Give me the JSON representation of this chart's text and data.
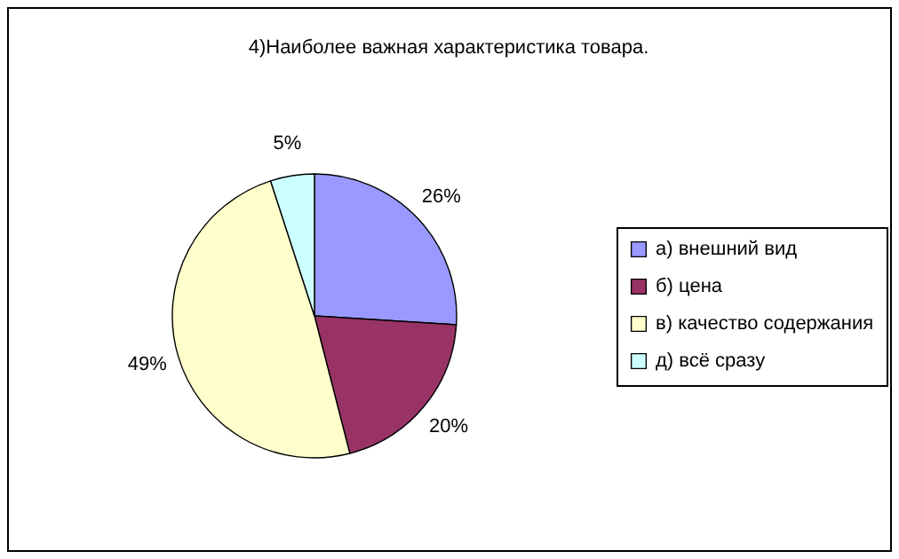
{
  "chart_data": {
    "type": "pie",
    "title": "4)Наиболее важная характеристика товара.",
    "categories": [
      "а) внешний вид",
      "б) цена",
      "в) качество содержания",
      "д) всё сразу"
    ],
    "values": [
      26,
      20,
      49,
      5
    ],
    "colors": [
      "#9999ff",
      "#993366",
      "#ffffcc",
      "#ccffff"
    ],
    "value_labels": [
      "26%",
      "20%",
      "49%",
      "5%"
    ],
    "legend": "right"
  }
}
